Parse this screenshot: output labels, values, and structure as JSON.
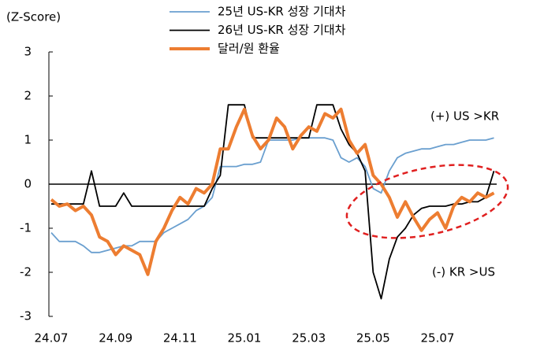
{
  "chart_data": {
    "type": "line",
    "y_axis_label": "(Z-Score)",
    "annotations": [
      "(+) US >KR",
      "(-) KR >US"
    ],
    "categories": [
      "24.07",
      null,
      null,
      null,
      null,
      null,
      null,
      null,
      "24.09",
      null,
      null,
      null,
      null,
      null,
      null,
      null,
      "24.11",
      null,
      null,
      null,
      null,
      null,
      null,
      null,
      "25.01",
      null,
      null,
      null,
      null,
      null,
      null,
      null,
      "25.03",
      null,
      null,
      null,
      null,
      null,
      null,
      null,
      "25.05",
      null,
      null,
      null,
      null,
      null,
      null,
      null,
      "25.07",
      null,
      null,
      null,
      null,
      null,
      null,
      null
    ],
    "series": [
      {
        "name": "25년 US-KR 성장 기대차",
        "color": "#6a9fcf",
        "width": 1.8,
        "values": [
          -1.1,
          -1.3,
          -1.3,
          -1.3,
          -1.4,
          -1.55,
          -1.55,
          -1.5,
          -1.45,
          -1.4,
          -1.4,
          -1.3,
          -1.3,
          -1.3,
          -1.1,
          -1.0,
          -0.9,
          -0.8,
          -0.6,
          -0.5,
          -0.3,
          0.4,
          0.4,
          0.4,
          0.45,
          0.45,
          0.5,
          1.0,
          1.0,
          1.0,
          1.0,
          1.05,
          1.05,
          1.05,
          1.05,
          1.0,
          0.6,
          0.5,
          0.6,
          0.4,
          -0.1,
          -0.2,
          0.3,
          0.6,
          0.7,
          0.75,
          0.8,
          0.8,
          0.85,
          0.9,
          0.9,
          0.95,
          1.0,
          1.0,
          1.0,
          1.05
        ]
      },
      {
        "name": "26년 US-KR 성장 기대차",
        "color": "#000000",
        "width": 1.8,
        "values": [
          -0.45,
          -0.45,
          -0.45,
          -0.45,
          -0.45,
          0.3,
          -0.5,
          -0.5,
          -0.5,
          -0.2,
          -0.5,
          -0.5,
          -0.5,
          -0.5,
          -0.5,
          -0.5,
          -0.5,
          -0.5,
          -0.5,
          -0.5,
          -0.1,
          0.2,
          1.8,
          1.8,
          1.8,
          1.05,
          1.05,
          1.05,
          1.05,
          1.05,
          1.05,
          1.05,
          1.05,
          1.8,
          1.8,
          1.8,
          1.25,
          0.9,
          0.7,
          0.3,
          -2.0,
          -2.6,
          -1.7,
          -1.2,
          -1.0,
          -0.7,
          -0.55,
          -0.5,
          -0.5,
          -0.5,
          -0.45,
          -0.45,
          -0.4,
          -0.4,
          -0.3,
          0.3
        ]
      },
      {
        "name": "달러/원 환율",
        "color": "#ed7d31",
        "width": 4,
        "values": [
          -0.35,
          -0.5,
          -0.45,
          -0.6,
          -0.5,
          -0.7,
          -1.2,
          -1.3,
          -1.6,
          -1.4,
          -1.5,
          -1.6,
          -2.05,
          -1.3,
          -1.0,
          -0.6,
          -0.3,
          -0.45,
          -0.1,
          -0.2,
          0.0,
          0.8,
          0.8,
          1.3,
          1.7,
          1.1,
          0.8,
          1.0,
          1.5,
          1.3,
          0.8,
          1.1,
          1.3,
          1.2,
          1.6,
          1.5,
          1.7,
          1.0,
          0.7,
          0.9,
          0.2,
          0.0,
          -0.3,
          -0.75,
          -0.4,
          -0.75,
          -1.05,
          -0.8,
          -0.65,
          -1.0,
          -0.5,
          -0.3,
          -0.4,
          -0.2,
          -0.3,
          -0.2
        ]
      }
    ],
    "ylim": [
      -3,
      3
    ],
    "yticks": [
      -3,
      -2,
      -1,
      0,
      1,
      2,
      3
    ]
  }
}
